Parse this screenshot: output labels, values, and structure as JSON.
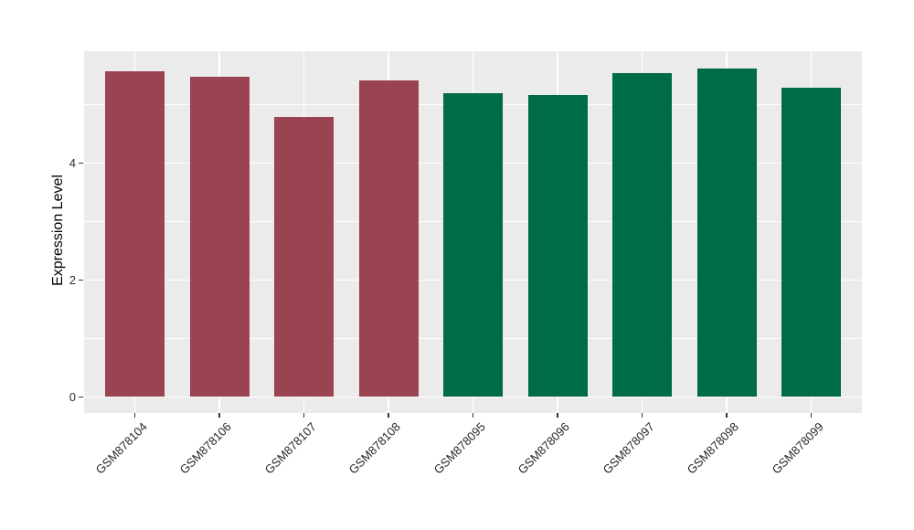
{
  "figure": {
    "background_color": "#FFFFFF",
    "panel_background_color": "#EBEBEB",
    "gridline_color": "#FFFFFF",
    "axis_text_color": "#303030",
    "axis_title_color": "#000000"
  },
  "chart_data": {
    "type": "bar",
    "title": "",
    "xlabel": "",
    "ylabel": "Expression Level",
    "categories": [
      "GSM878104",
      "GSM878106",
      "GSM878107",
      "GSM878108",
      "GSM878095",
      "GSM878096",
      "GSM878097",
      "GSM878098",
      "GSM878099"
    ],
    "values": [
      5.57,
      5.47,
      4.78,
      5.41,
      5.19,
      5.16,
      5.53,
      5.61,
      5.28
    ],
    "bar_colors": [
      "#9A4451",
      "#9A4451",
      "#9A4451",
      "#9A4451",
      "#006B49",
      "#006B49",
      "#006B49",
      "#006B49",
      "#006B49"
    ],
    "group_colors": {
      "left_group_red": "#9A4451",
      "right_group_green": "#006B49"
    },
    "ylim": [
      -0.29,
      5.91
    ],
    "yticks": [
      0,
      2,
      4
    ],
    "yticks_minor": [
      1,
      3,
      5
    ],
    "grid": true,
    "legend": "none",
    "x_label_rotation_deg": 45
  }
}
